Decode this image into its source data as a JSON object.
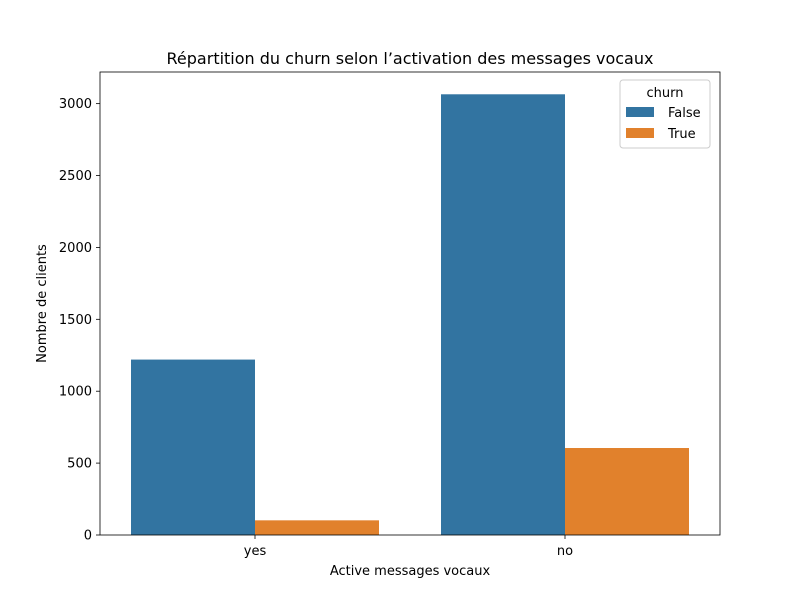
{
  "chart_data": {
    "type": "bar",
    "title": "Répartition du churn selon l’activation des messages vocaux",
    "xlabel": "Active messages vocaux",
    "ylabel": "Nombre de clients",
    "categories": [
      "yes",
      "no"
    ],
    "series": [
      {
        "name": "False",
        "values": [
          1220,
          3065
        ],
        "color": "#3274a1"
      },
      {
        "name": "True",
        "values": [
          102,
          605
        ],
        "color": "#e1812c"
      }
    ],
    "ylim": [
      0,
      3220
    ],
    "yticks": [
      0,
      500,
      1000,
      1500,
      2000,
      2500,
      3000
    ],
    "legend": {
      "title": "churn",
      "position": "top-right"
    },
    "grid": false
  }
}
